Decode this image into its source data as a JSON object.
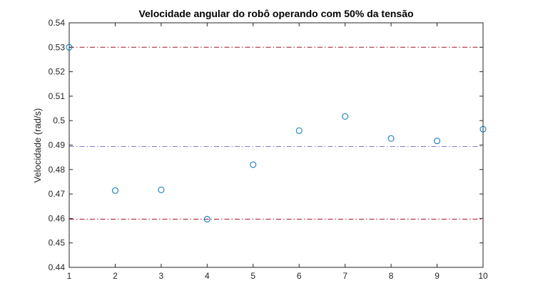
{
  "chart_data": {
    "type": "scatter",
    "title": "Velocidade angular do robô operando com 50% da tensão",
    "xlabel": "",
    "ylabel": "Velocidade (rad/s)",
    "xlim": [
      1,
      10
    ],
    "ylim": [
      0.44,
      0.54
    ],
    "xticks": [
      "1",
      "2",
      "3",
      "4",
      "5",
      "6",
      "7",
      "8",
      "9",
      "10"
    ],
    "yticks": [
      "0.44",
      "0.45",
      "0.46",
      "0.47",
      "0.48",
      "0.49",
      "0.5",
      "0.51",
      "0.52",
      "0.53",
      "0.54"
    ],
    "grid": false,
    "x": [
      1,
      2,
      3,
      4,
      5,
      6,
      7,
      8,
      9,
      10
    ],
    "y": [
      0.53,
      0.4714,
      0.4717,
      0.4597,
      0.482,
      0.4959,
      0.5017,
      0.4927,
      0.4917,
      0.4965
    ],
    "reference_lines": [
      {
        "y": 0.53,
        "style": "dash-dot",
        "color": "#a2142f"
      },
      {
        "y": 0.4894,
        "style": "dash-dot",
        "color": "#7e7ec0"
      },
      {
        "y": 0.4597,
        "style": "dash-dot",
        "color": "#a2142f"
      }
    ],
    "marker": "open-circle",
    "marker_color": "#0072bd",
    "axis_color": "#262626"
  }
}
